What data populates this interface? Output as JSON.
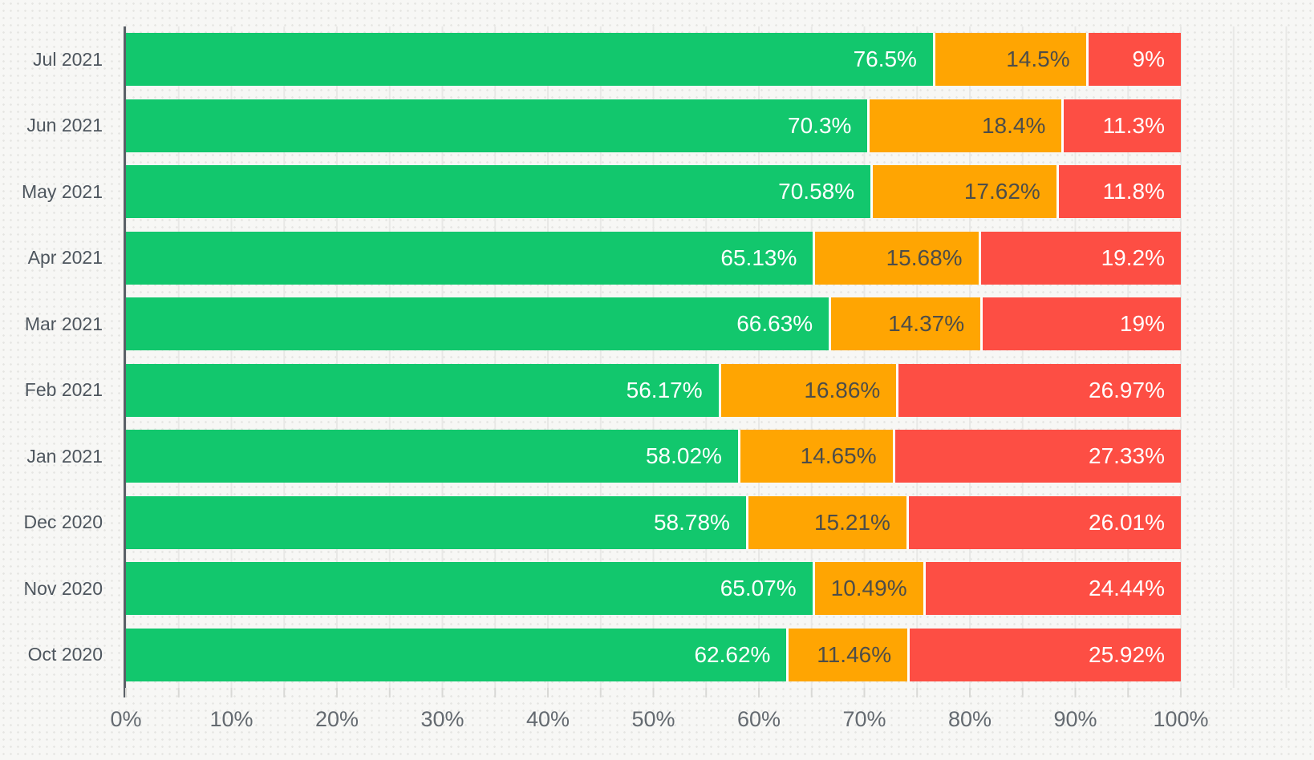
{
  "chart_data": {
    "type": "bar",
    "orientation": "horizontal",
    "stacked": true,
    "title": "",
    "xlabel": "",
    "ylabel": "",
    "grid": true,
    "legend": null,
    "categories": [
      "Jul 2021",
      "Jun 2021",
      "May 2021",
      "Apr 2021",
      "Mar 2021",
      "Feb 2021",
      "Jan 2021",
      "Dec 2020",
      "Nov 2020",
      "Oct 2020"
    ],
    "series": [
      {
        "name": "green-segment",
        "color": "#12c76d",
        "text_color": "#ffffff",
        "values": [
          76.5,
          70.3,
          70.58,
          65.13,
          66.63,
          56.17,
          58.02,
          58.78,
          65.07,
          62.62
        ]
      },
      {
        "name": "orange-segment",
        "color": "#ffa502",
        "text_color": "#4d4d49",
        "values": [
          14.5,
          18.4,
          17.62,
          15.68,
          14.37,
          16.86,
          14.65,
          15.21,
          10.49,
          11.46
        ]
      },
      {
        "name": "red-segment",
        "color": "#fd4e44",
        "text_color": "#ffffff",
        "values": [
          9,
          11.3,
          11.8,
          19.2,
          19,
          26.97,
          27.33,
          26.01,
          24.44,
          25.92
        ]
      }
    ],
    "value_labels": [
      [
        "76.5%",
        "14.5%",
        "9%"
      ],
      [
        "70.3%",
        "18.4%",
        "11.3%"
      ],
      [
        "70.58%",
        "17.62%",
        "11.8%"
      ],
      [
        "65.13%",
        "15.68%",
        "19.2%"
      ],
      [
        "66.63%",
        "14.37%",
        "19%"
      ],
      [
        "56.17%",
        "16.86%",
        "26.97%"
      ],
      [
        "58.02%",
        "14.65%",
        "27.33%"
      ],
      [
        "58.78%",
        "15.21%",
        "26.01%"
      ],
      [
        "65.07%",
        "10.49%",
        "24.44%"
      ],
      [
        "62.62%",
        "11.46%",
        "25.92%"
      ]
    ],
    "x_axis": {
      "min": 0,
      "max": 100,
      "major_tick_step": 10,
      "minor_tick_step": 5,
      "tick_labels": [
        "0%",
        "10%",
        "20%",
        "30%",
        "40%",
        "50%",
        "60%",
        "70%",
        "80%",
        "90%",
        "100%"
      ]
    },
    "colors": {
      "background": "#f7f7f5",
      "gridline": "#e8e8e6",
      "axis_line": "#5a6067",
      "y_label_text": "#4e565e",
      "x_label_text": "#646a70",
      "segment_gap": "#ffffff"
    }
  }
}
